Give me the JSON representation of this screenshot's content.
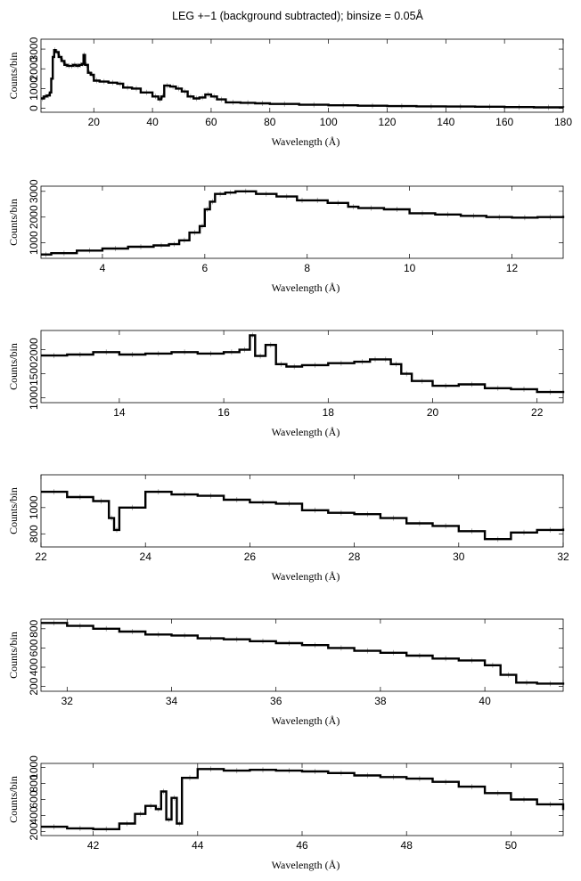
{
  "figure": {
    "title": "LEG +−1 (background subtracted); binsize = 0.05Å"
  },
  "chart_data": [
    {
      "type": "line",
      "step": true,
      "xlabel": "Wavelength (Å)",
      "ylabel": "Counts/bin",
      "xlim": [
        2,
        180
      ],
      "ylim": [
        -200,
        3500
      ],
      "xticks": [
        20,
        40,
        60,
        80,
        100,
        120,
        140,
        160,
        180
      ],
      "yticks": [
        0,
        1000,
        2000,
        3000
      ],
      "series": [
        {
          "x": [
            2,
            3,
            4,
            5,
            5.5,
            6,
            6.5,
            7,
            8,
            9,
            10,
            11,
            12,
            13,
            14,
            15,
            16,
            16.5,
            17,
            18,
            19,
            20,
            22,
            25,
            28,
            30,
            33,
            36,
            40,
            42,
            43,
            44,
            46,
            48,
            50,
            52,
            54,
            56,
            58,
            60,
            62,
            65,
            70,
            75,
            80,
            90,
            100,
            110,
            120,
            130,
            140,
            150,
            160,
            170,
            180
          ],
          "y": [
            500,
            600,
            650,
            800,
            1500,
            2600,
            2950,
            2850,
            2600,
            2400,
            2200,
            2150,
            2150,
            2200,
            2150,
            2200,
            2250,
            2700,
            2200,
            1800,
            1700,
            1400,
            1350,
            1300,
            1250,
            1050,
            1000,
            800,
            600,
            450,
            600,
            1150,
            1100,
            1000,
            850,
            600,
            500,
            550,
            700,
            600,
            450,
            300,
            280,
            250,
            220,
            180,
            150,
            130,
            110,
            100,
            90,
            80,
            60,
            50,
            40
          ]
        }
      ]
    },
    {
      "type": "line",
      "step": true,
      "xlabel": "Wavelength (Å)",
      "ylabel": "Counts/bin",
      "xlim": [
        2.8,
        13
      ],
      "ylim": [
        400,
        3200
      ],
      "xticks": [
        4,
        6,
        8,
        10,
        12
      ],
      "yticks": [
        1000,
        2000,
        3000
      ],
      "series": [
        {
          "x": [
            2.8,
            3,
            3.5,
            4,
            4.5,
            5,
            5.3,
            5.5,
            5.7,
            5.9,
            6.0,
            6.1,
            6.2,
            6.4,
            6.6,
            7,
            7.4,
            7.8,
            8,
            8.4,
            8.8,
            9,
            9.5,
            10,
            10.5,
            11,
            11.5,
            12,
            12.5,
            13
          ],
          "y": [
            550,
            600,
            700,
            780,
            850,
            900,
            950,
            1100,
            1400,
            1650,
            2300,
            2600,
            2900,
            2950,
            3000,
            2900,
            2800,
            2650,
            2650,
            2550,
            2400,
            2350,
            2300,
            2150,
            2100,
            2050,
            2000,
            1980,
            2000,
            2050
          ]
        }
      ]
    },
    {
      "type": "line",
      "step": true,
      "xlabel": "Wavelength (Å)",
      "ylabel": "Counts/bin",
      "xlim": [
        12.5,
        22.5
      ],
      "ylim": [
        900,
        2400
      ],
      "xticks": [
        14,
        16,
        18,
        20,
        22
      ],
      "yticks": [
        1000,
        1500,
        2000
      ],
      "series": [
        {
          "x": [
            12.5,
            13,
            13.5,
            14,
            14.5,
            15,
            15.5,
            16,
            16.3,
            16.5,
            16.6,
            16.8,
            17.0,
            17.2,
            17.5,
            18,
            18.5,
            18.8,
            19.0,
            19.2,
            19.4,
            19.6,
            20,
            20.5,
            21,
            21.5,
            22,
            22.5
          ],
          "y": [
            1880,
            1900,
            1950,
            1900,
            1920,
            1950,
            1920,
            1950,
            2000,
            2300,
            1870,
            2100,
            1700,
            1650,
            1680,
            1720,
            1750,
            1800,
            1800,
            1700,
            1500,
            1350,
            1250,
            1280,
            1200,
            1180,
            1120,
            1100
          ]
        }
      ]
    },
    {
      "type": "line",
      "step": true,
      "xlabel": "Wavelength (Å)",
      "ylabel": "Counts/bin",
      "xlim": [
        22,
        32
      ],
      "ylim": [
        700,
        1250
      ],
      "xticks": [
        22,
        24,
        26,
        28,
        30,
        32
      ],
      "yticks": [
        800,
        1000
      ],
      "series": [
        {
          "x": [
            22,
            22.5,
            23,
            23.3,
            23.4,
            23.5,
            24,
            24.5,
            25,
            25.5,
            26,
            26.5,
            27,
            27.5,
            28,
            28.5,
            29,
            29.5,
            30,
            30.5,
            31,
            31.5,
            32
          ],
          "y": [
            1120,
            1080,
            1050,
            920,
            830,
            1000,
            1120,
            1100,
            1090,
            1060,
            1040,
            1030,
            980,
            960,
            950,
            920,
            880,
            860,
            820,
            760,
            810,
            830,
            840
          ]
        }
      ]
    },
    {
      "type": "line",
      "step": true,
      "xlabel": "Wavelength (Å)",
      "ylabel": "Counts/bin",
      "xlim": [
        31.5,
        41.5
      ],
      "ylim": [
        150,
        900
      ],
      "xticks": [
        32,
        34,
        36,
        38,
        40
      ],
      "yticks": [
        200,
        400,
        600,
        800
      ],
      "series": [
        {
          "x": [
            31.5,
            32,
            32.5,
            33,
            33.5,
            34,
            34.5,
            35,
            35.5,
            36,
            36.5,
            37,
            37.5,
            38,
            38.5,
            39,
            39.5,
            40,
            40.3,
            40.6,
            41,
            41.5
          ],
          "y": [
            860,
            830,
            800,
            770,
            740,
            730,
            700,
            690,
            670,
            650,
            630,
            600,
            570,
            550,
            520,
            490,
            470,
            420,
            320,
            240,
            230,
            240
          ]
        }
      ]
    },
    {
      "type": "line",
      "step": true,
      "xlabel": "Wavelength (Å)",
      "ylabel": "Counts/bin",
      "xlim": [
        41,
        51
      ],
      "ylim": [
        150,
        1050
      ],
      "xticks": [
        42,
        44,
        46,
        48,
        50
      ],
      "yticks": [
        200,
        400,
        600,
        800,
        1000
      ],
      "series": [
        {
          "x": [
            41,
            41.5,
            42,
            42.5,
            42.8,
            43,
            43.2,
            43.3,
            43.4,
            43.5,
            43.6,
            43.7,
            44,
            44.5,
            45,
            45.5,
            46,
            46.5,
            47,
            47.5,
            48,
            48.5,
            49,
            49.5,
            50,
            50.5,
            51
          ],
          "y": [
            260,
            240,
            230,
            300,
            420,
            520,
            480,
            700,
            350,
            620,
            300,
            870,
            980,
            960,
            970,
            960,
            950,
            930,
            900,
            880,
            860,
            820,
            760,
            680,
            600,
            540,
            470
          ]
        }
      ]
    }
  ]
}
